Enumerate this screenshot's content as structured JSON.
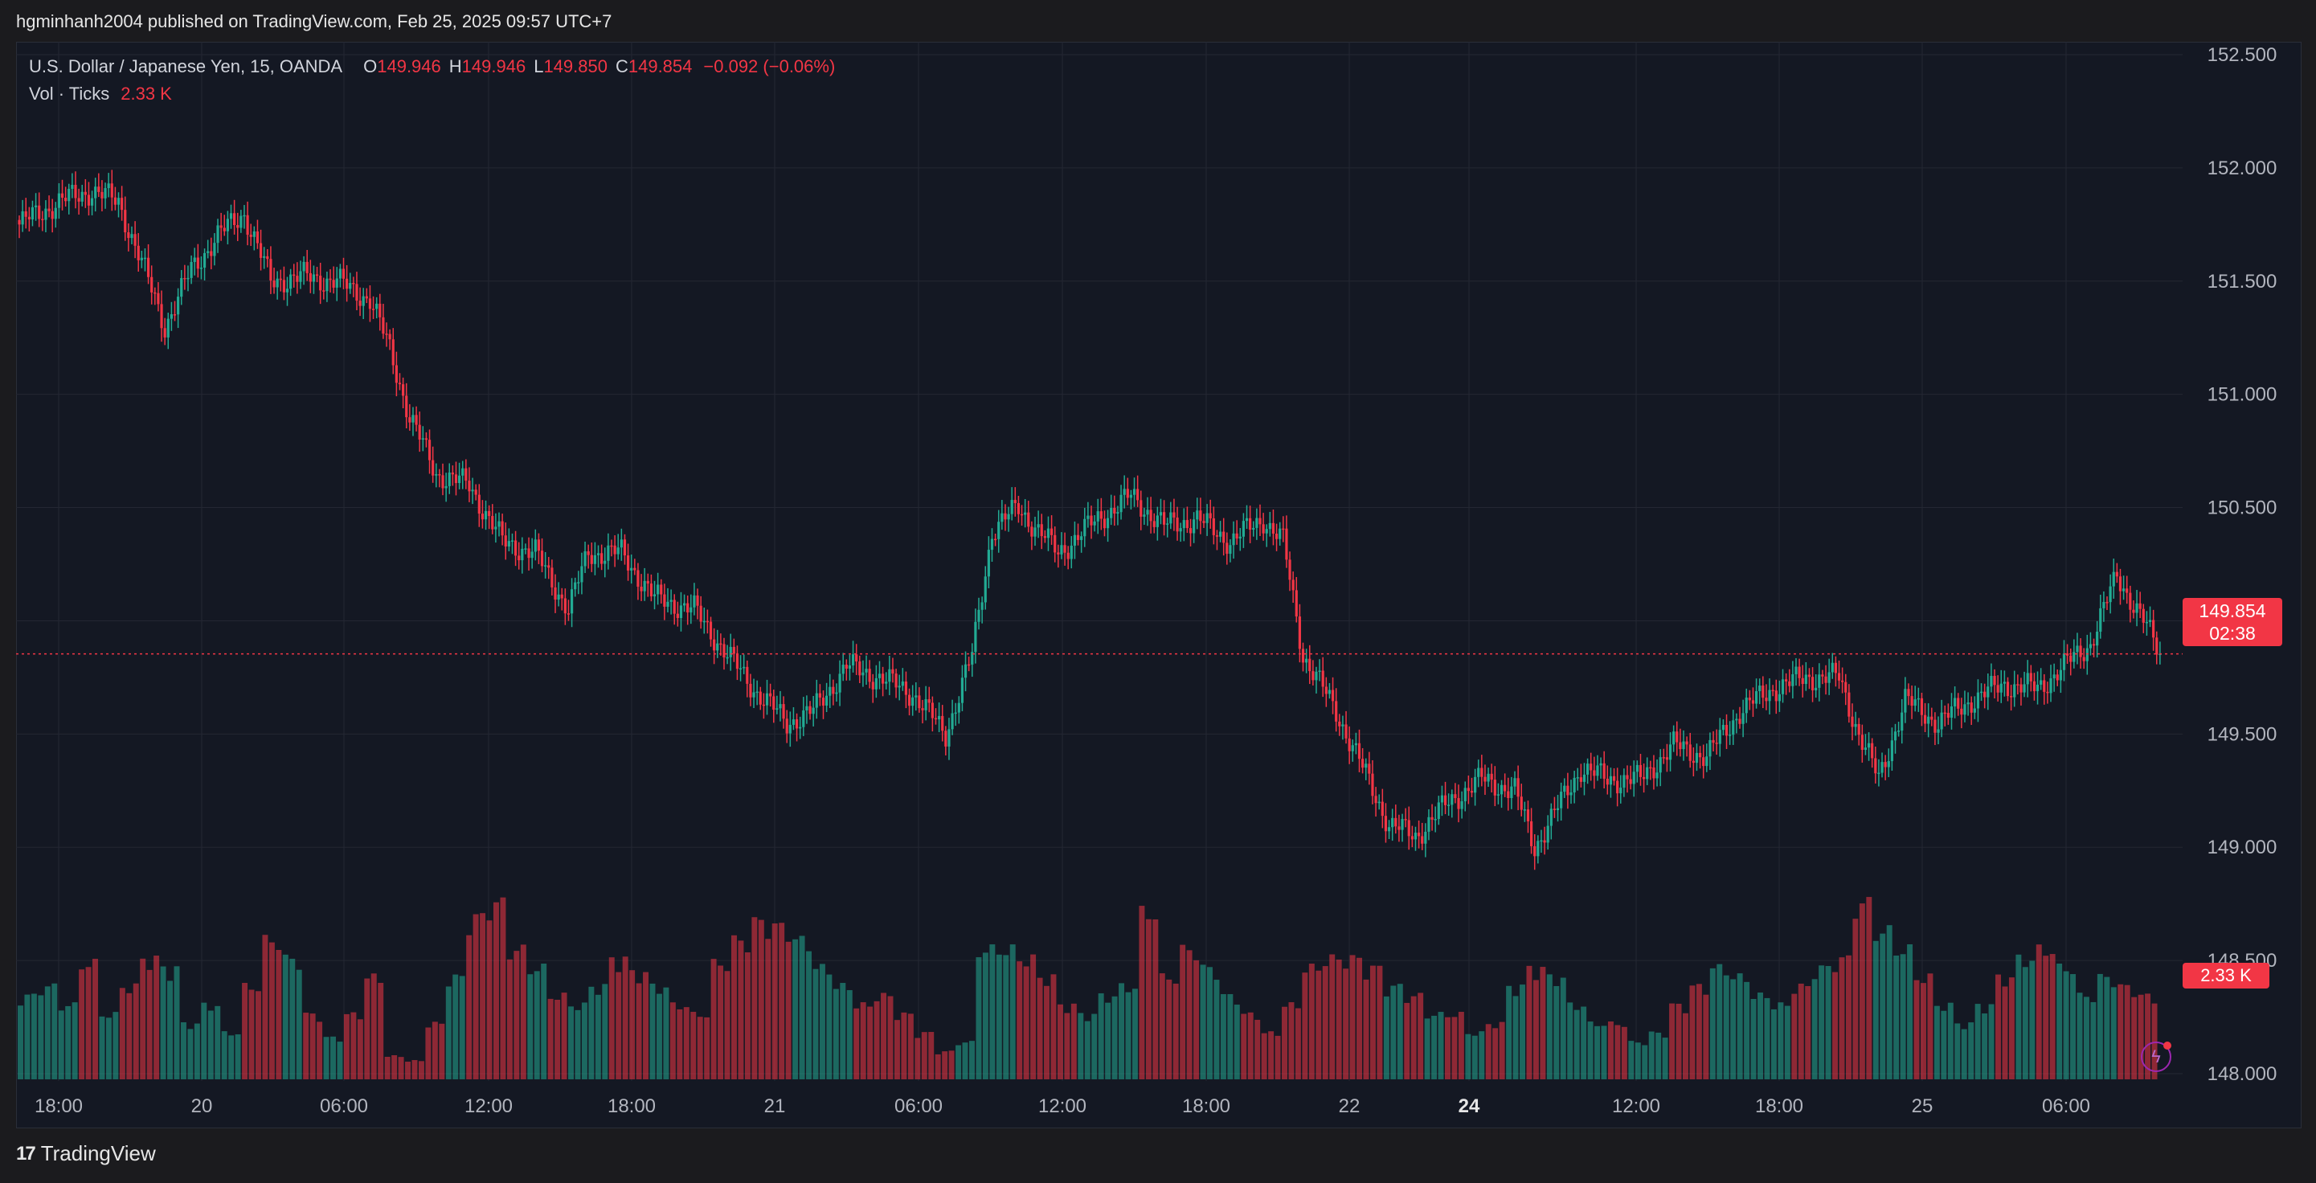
{
  "header": {
    "publisher_line": "hgminhanh2004 published on TradingView.com, Feb 25, 2025 09:57 UTC+7"
  },
  "legend": {
    "symbol": "U.S. Dollar / Japanese Yen, 15, OANDA",
    "o_label": "O",
    "o_value": "149.946",
    "h_label": "H",
    "h_value": "149.946",
    "l_label": "L",
    "l_value": "149.850",
    "c_label": "C",
    "c_value": "149.854",
    "change": "−0.092 (−0.06%)",
    "vol_label": "Vol · Ticks",
    "vol_value": "2.33 K"
  },
  "last_price": {
    "price": "149.854",
    "countdown": "02:38",
    "volume": "2.33 K"
  },
  "footer": {
    "brand": "TradingView",
    "logo_text": "17"
  },
  "colors": {
    "up": "#22ab94",
    "down": "#f23645",
    "background": "#141823",
    "grid": "#242733",
    "text": "#b2b5be"
  },
  "chart_data": {
    "type": "candlestick",
    "symbol": "USDJPY",
    "interval": "15",
    "y_ticks": [
      "152.500",
      "152.000",
      "151.500",
      "151.000",
      "150.500",
      "150.000",
      "149.500",
      "149.000",
      "148.500",
      "148.000"
    ],
    "ylim": [
      148.0,
      152.5
    ],
    "x_ticks": [
      "18:00",
      "20",
      "06:00",
      "12:00",
      "18:00",
      "21",
      "06:00",
      "12:00",
      "18:00",
      "22",
      "24",
      "12:00",
      "18:00",
      "25",
      "06:00"
    ],
    "bold_x_tick": "24",
    "last_price": 149.854,
    "price_path": [
      [
        0,
        151.75
      ],
      [
        12,
        151.85
      ],
      [
        22,
        151.9
      ],
      [
        30,
        151.85
      ],
      [
        36,
        151.62
      ],
      [
        44,
        151.3
      ],
      [
        52,
        151.55
      ],
      [
        60,
        151.7
      ],
      [
        68,
        151.8
      ],
      [
        76,
        151.5
      ],
      [
        86,
        151.52
      ],
      [
        96,
        151.5
      ],
      [
        106,
        151.42
      ],
      [
        112,
        151.2
      ],
      [
        118,
        150.9
      ],
      [
        126,
        150.65
      ],
      [
        136,
        150.6
      ],
      [
        146,
        150.35
      ],
      [
        156,
        150.3
      ],
      [
        166,
        150.05
      ],
      [
        172,
        150.3
      ],
      [
        182,
        150.3
      ],
      [
        192,
        150.1
      ],
      [
        204,
        150.05
      ],
      [
        214,
        149.85
      ],
      [
        222,
        149.7
      ],
      [
        232,
        149.55
      ],
      [
        240,
        149.6
      ],
      [
        250,
        149.8
      ],
      [
        260,
        149.75
      ],
      [
        270,
        149.68
      ],
      [
        280,
        149.5
      ],
      [
        288,
        149.85
      ],
      [
        294,
        150.4
      ],
      [
        302,
        150.5
      ],
      [
        314,
        150.3
      ],
      [
        326,
        150.45
      ],
      [
        336,
        150.55
      ],
      [
        346,
        150.42
      ],
      [
        356,
        150.45
      ],
      [
        366,
        150.35
      ],
      [
        376,
        150.45
      ],
      [
        382,
        150.35
      ],
      [
        388,
        149.85
      ],
      [
        398,
        149.6
      ],
      [
        406,
        149.35
      ],
      [
        414,
        149.1
      ],
      [
        422,
        149.05
      ],
      [
        432,
        149.2
      ],
      [
        442,
        149.3
      ],
      [
        452,
        149.25
      ],
      [
        458,
        149.0
      ],
      [
        464,
        149.15
      ],
      [
        472,
        149.35
      ],
      [
        480,
        149.3
      ],
      [
        490,
        149.3
      ],
      [
        500,
        149.45
      ],
      [
        510,
        149.4
      ],
      [
        520,
        149.6
      ],
      [
        530,
        149.7
      ],
      [
        540,
        149.75
      ],
      [
        550,
        149.75
      ],
      [
        556,
        149.5
      ],
      [
        562,
        149.3
      ],
      [
        570,
        149.65
      ],
      [
        580,
        149.55
      ],
      [
        590,
        149.65
      ],
      [
        600,
        149.72
      ],
      [
        610,
        149.7
      ],
      [
        618,
        149.8
      ],
      [
        626,
        149.9
      ],
      [
        634,
        150.2
      ],
      [
        642,
        150.0
      ],
      [
        647,
        149.854
      ]
    ],
    "volume_ticks_k": [
      1.8,
      2.0,
      1.6,
      2.5,
      1.4,
      2.0,
      2.6,
      2.4,
      1.2,
      1.6,
      1.0,
      2.0,
      3.0,
      2.6,
      1.4,
      0.9,
      1.4,
      2.2,
      0.5,
      0.4,
      1.2,
      2.2,
      3.5,
      3.8,
      2.8,
      2.4,
      1.8,
      1.6,
      2.0,
      2.6,
      2.3,
      2.0,
      1.6,
      1.4,
      2.5,
      3.0,
      3.4,
      3.3,
      3.0,
      2.4,
      2.0,
      1.6,
      1.8,
      1.4,
      1.0,
      0.6,
      0.8,
      2.8,
      2.8,
      2.6,
      2.2,
      1.6,
      1.4,
      1.8,
      2.0,
      3.6,
      2.2,
      2.8,
      2.4,
      1.8,
      1.4,
      1.0,
      1.6,
      2.4,
      2.6,
      2.6,
      2.4,
      2.0,
      1.8,
      1.4,
      1.4,
      1.0,
      1.2,
      2.0,
      2.4,
      2.2,
      1.6,
      1.2,
      1.2,
      0.8,
      1.0,
      1.6,
      2.0,
      2.4,
      2.2,
      1.8,
      1.6,
      2.0,
      2.4,
      2.6,
      3.8,
      3.2,
      2.8,
      2.2,
      1.6,
      1.2,
      1.6,
      2.2,
      2.6,
      2.8,
      2.4,
      1.8,
      2.2,
      2.0,
      1.8
    ]
  }
}
